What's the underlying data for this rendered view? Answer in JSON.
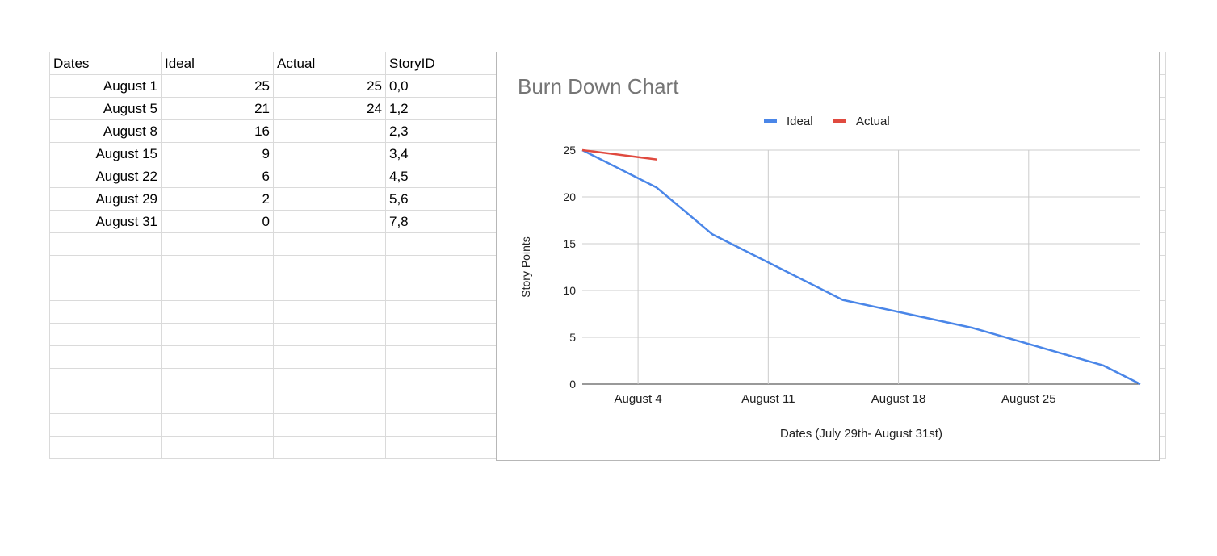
{
  "sheet": {
    "headers": [
      "Dates",
      "Ideal",
      "Actual",
      "StoryID"
    ],
    "rows": [
      [
        "August 1",
        "25",
        "25",
        "0,0"
      ],
      [
        "August 5",
        "21",
        "24",
        "1,2"
      ],
      [
        "August 8",
        "16",
        "",
        "2,3"
      ],
      [
        "August 15",
        "9",
        "",
        "3,4"
      ],
      [
        "August 22",
        "6",
        "",
        "4,5"
      ],
      [
        "August 29",
        "2",
        "",
        "5,6"
      ],
      [
        "August 31",
        "0",
        "",
        "7,8"
      ]
    ],
    "empty_rows": 10,
    "extra_cols": 6
  },
  "chart_data": {
    "type": "line",
    "title": "Burn Down Chart",
    "xlabel": "Dates (July 29th- August 31st)",
    "ylabel": "Story Points",
    "x_ticks": [
      "August 4",
      "August 11",
      "August 18",
      "August 25"
    ],
    "x_tick_days": [
      4,
      11,
      18,
      25
    ],
    "xlim_days": [
      1,
      31
    ],
    "y_ticks": [
      0,
      5,
      10,
      15,
      20,
      25
    ],
    "ylim": [
      0,
      25
    ],
    "grid": true,
    "legend_position": "top",
    "series": [
      {
        "name": "Ideal",
        "color": "#4a86e8",
        "x_days": [
          1,
          5,
          8,
          15,
          22,
          29,
          31
        ],
        "values": [
          25,
          21,
          16,
          9,
          6,
          2,
          0
        ]
      },
      {
        "name": "Actual",
        "color": "#e04a3f",
        "x_days": [
          1,
          5
        ],
        "values": [
          25,
          24
        ]
      }
    ]
  }
}
